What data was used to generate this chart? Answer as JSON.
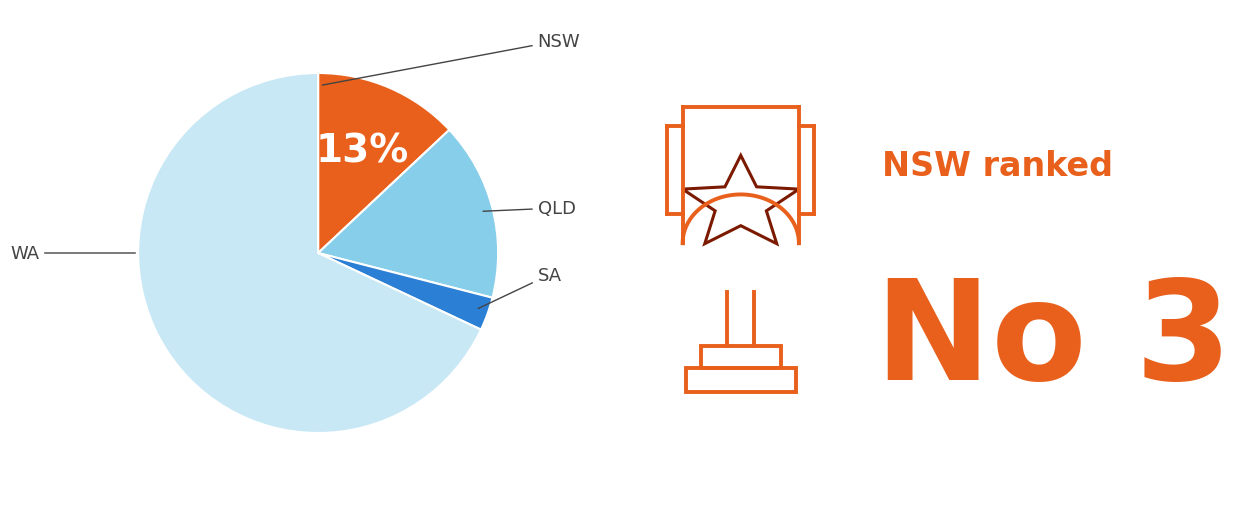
{
  "labels": [
    "NSW",
    "QLD",
    "SA",
    "WA"
  ],
  "values": [
    13,
    16,
    3,
    68
  ],
  "colors": [
    "#E8601C",
    "#87CEEB",
    "#2B7FD4",
    "#C8E8F5"
  ],
  "nsw_pct_label": "13%",
  "label_color": "#444444",
  "orange": "#E8601C",
  "dark_red": "#7B1A00",
  "ranked_text": "NSW ranked",
  "number_text": "No 3",
  "background": "#FFFFFF",
  "label_fontsize": 13,
  "pct_fontsize": 28,
  "ranked_fontsize": 24,
  "number_fontsize": 100,
  "startangle": 90
}
